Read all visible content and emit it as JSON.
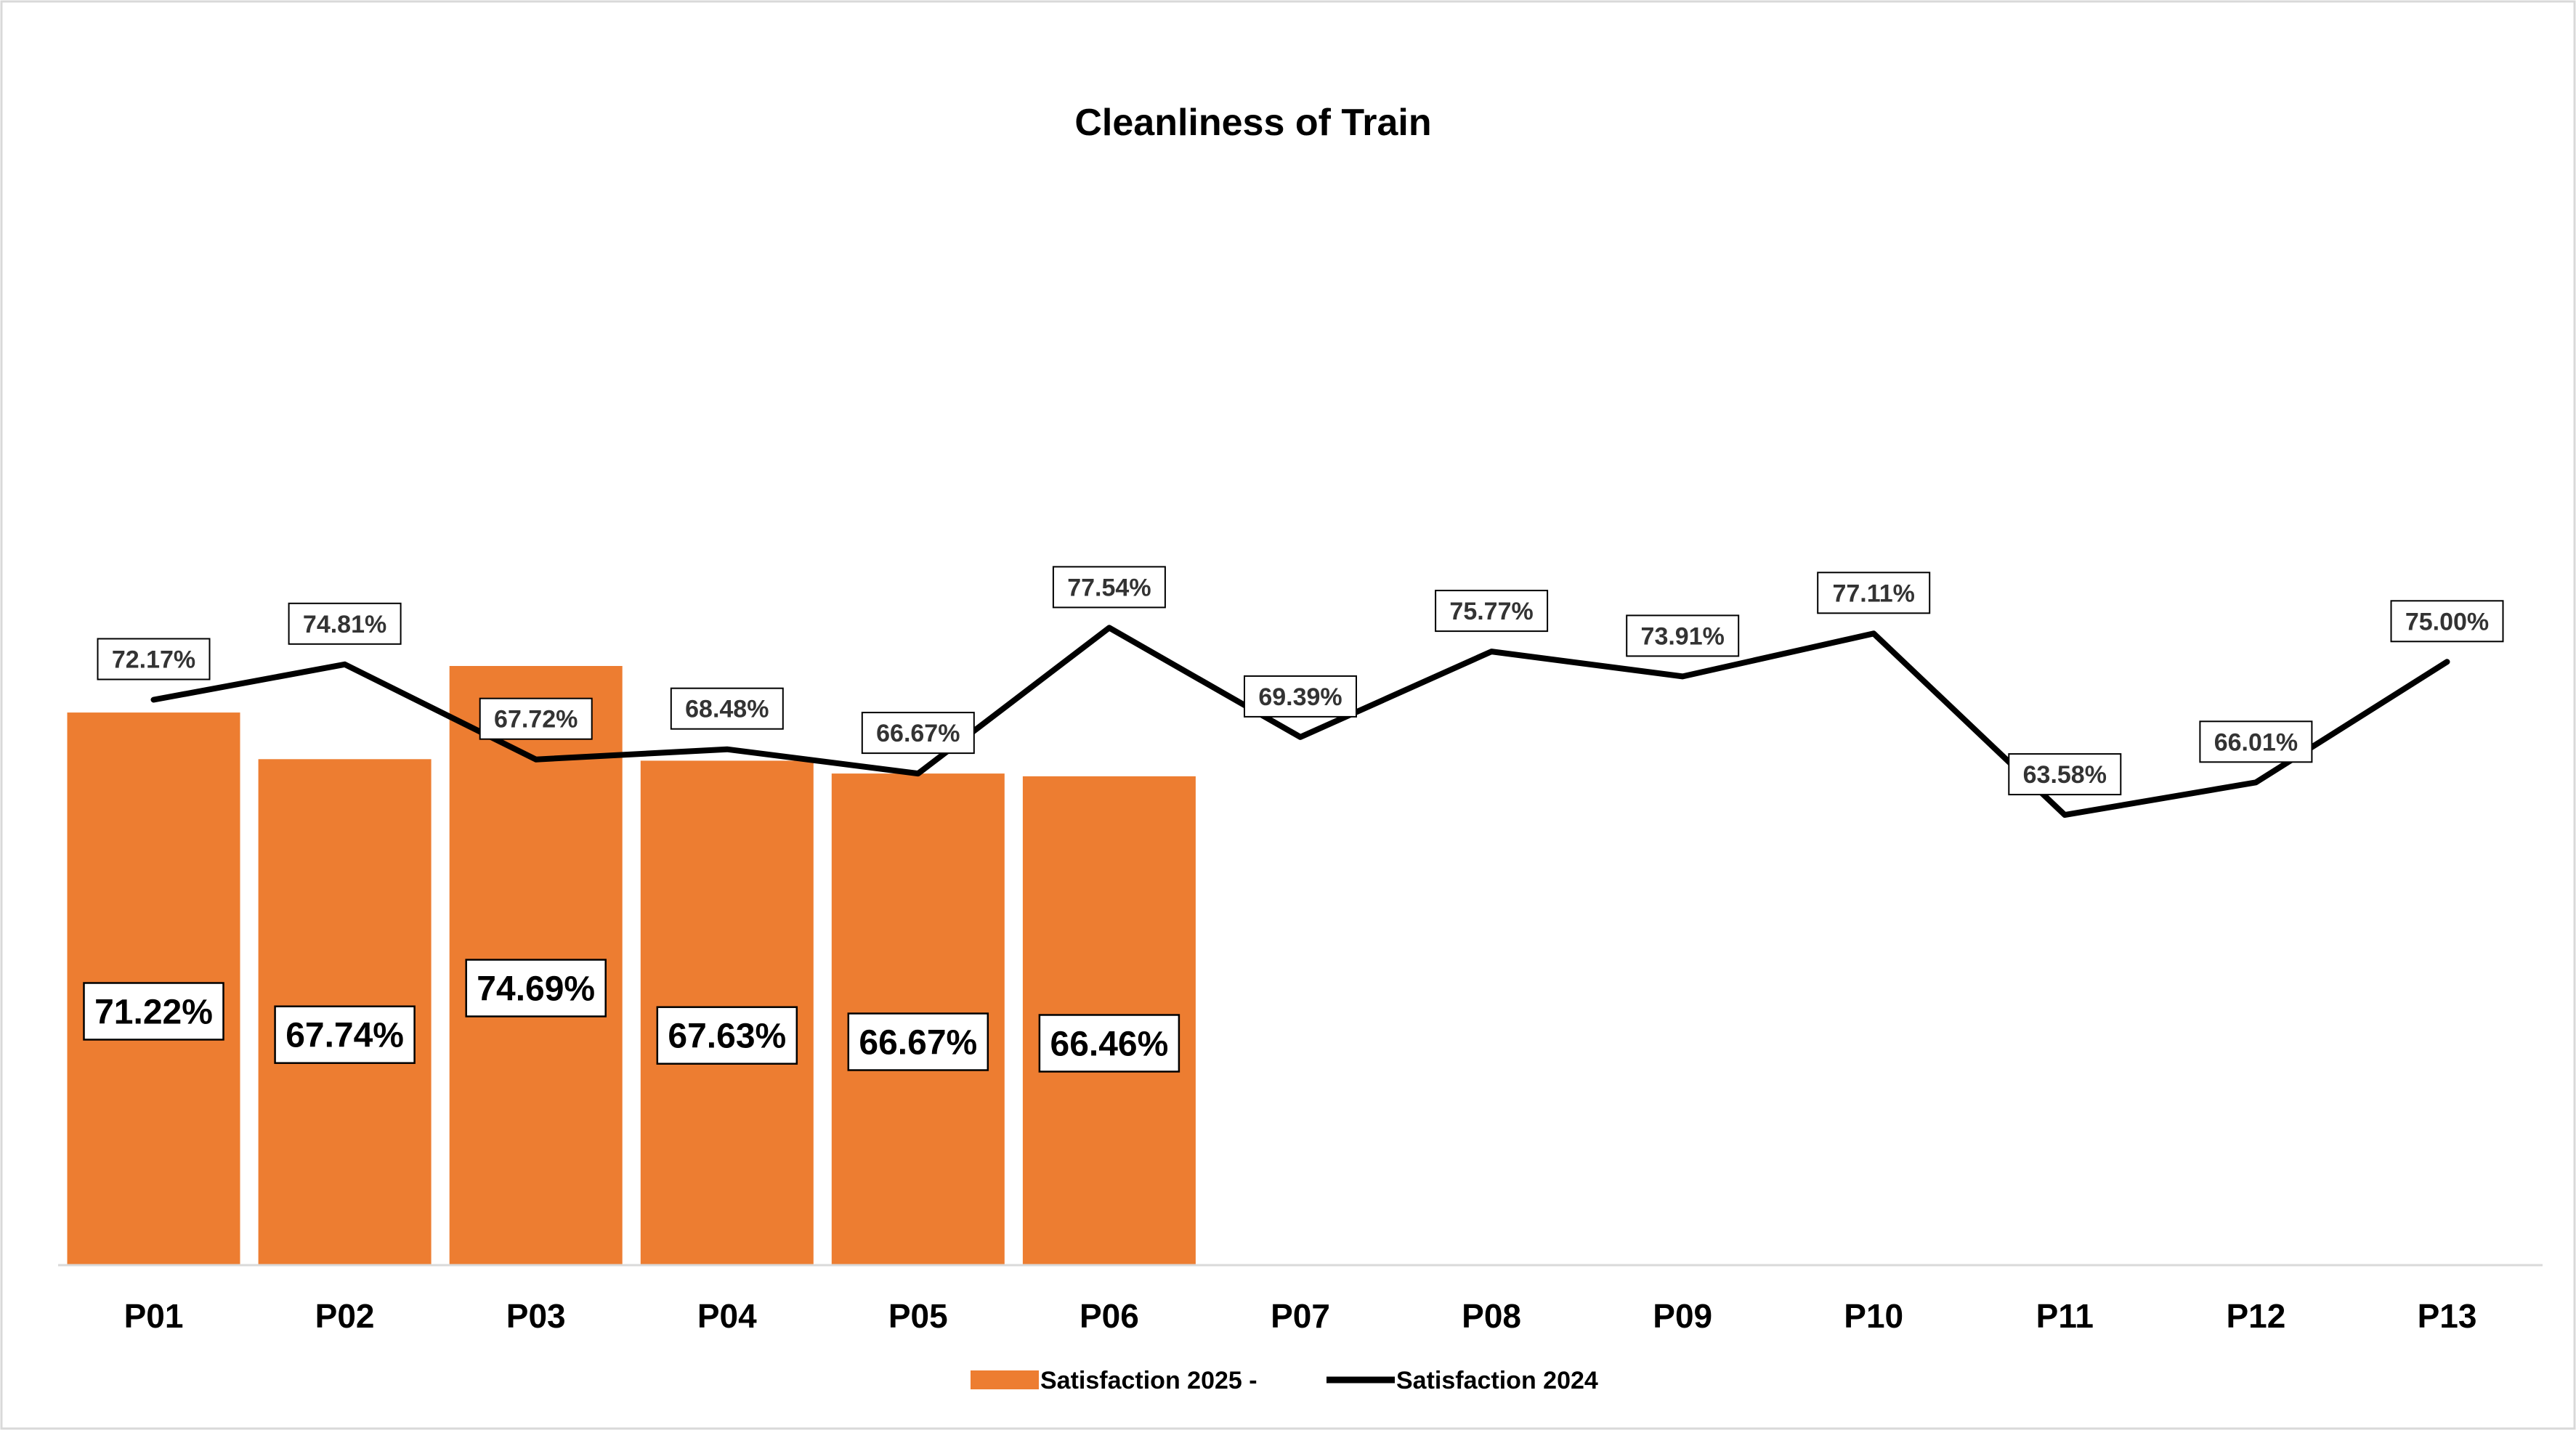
{
  "chart_data": {
    "type": "bar",
    "title": "Cleanliness of Train",
    "xlabel": "",
    "ylabel": "",
    "categories": [
      "P01",
      "P02",
      "P03",
      "P04",
      "P05",
      "P06",
      "P07",
      "P08",
      "P09",
      "P10",
      "P11",
      "P12",
      "P13"
    ],
    "series": [
      {
        "name": "Satisfaction 2025 -",
        "type": "bar",
        "color": "#ED7D31",
        "values": [
          71.22,
          67.74,
          74.69,
          67.63,
          66.67,
          66.46,
          null,
          null,
          null,
          null,
          null,
          null,
          null
        ],
        "labels": [
          "71.22%",
          "67.74%",
          "74.69%",
          "67.63%",
          "66.67%",
          "66.46%",
          null,
          null,
          null,
          null,
          null,
          null,
          null
        ]
      },
      {
        "name": "Satisfaction 2024",
        "type": "line",
        "color": "#000000",
        "values": [
          72.17,
          74.81,
          67.72,
          68.48,
          66.67,
          77.54,
          69.39,
          75.77,
          73.91,
          77.11,
          63.58,
          66.01,
          75.0
        ],
        "labels": [
          "72.17%",
          "74.81%",
          "67.72%",
          "68.48%",
          "66.67%",
          "77.54%",
          "69.39%",
          "75.77%",
          "73.91%",
          "77.11%",
          "63.58%",
          "66.01%",
          "75.00%"
        ]
      }
    ],
    "ylim": [
      0,
      100
    ],
    "grid": false,
    "legend": "bottom-center",
    "axis_color": "#D9D9D9",
    "border_color": "#D9D9D9"
  }
}
